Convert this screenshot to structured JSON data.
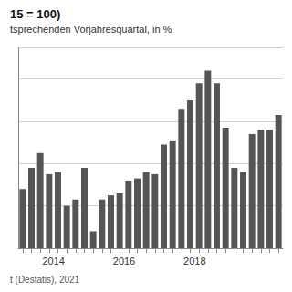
{
  "chart_data": {
    "type": "bar",
    "title": "15 = 100)",
    "subtitle": "tsprechenden Vorjahresquartal, in %",
    "annotations": [
      "t (Destatis), 2021"
    ],
    "categories": [
      null,
      null,
      null,
      "2014",
      null,
      null,
      null,
      null,
      null,
      null,
      null,
      "2016",
      null,
      null,
      null,
      null,
      null,
      null,
      null,
      "2018",
      null,
      null,
      null,
      null,
      null,
      null,
      null,
      null,
      null,
      null
    ],
    "values": [
      2.8,
      3.8,
      4.5,
      3.5,
      3.6,
      2.0,
      2.3,
      3.8,
      0.8,
      2.3,
      2.5,
      2.6,
      3.2,
      3.3,
      3.6,
      3.5,
      4.9,
      5.1,
      6.6,
      7.0,
      7.8,
      8.4,
      7.8,
      5.7,
      3.8,
      3.6,
      5.4,
      5.6,
      5.6,
      6.3
    ],
    "color": "#555555",
    "ylim": [
      0,
      9.5
    ],
    "yticks": [
      2,
      4,
      6,
      8
    ],
    "grid": true,
    "tick_labels": "x"
  }
}
